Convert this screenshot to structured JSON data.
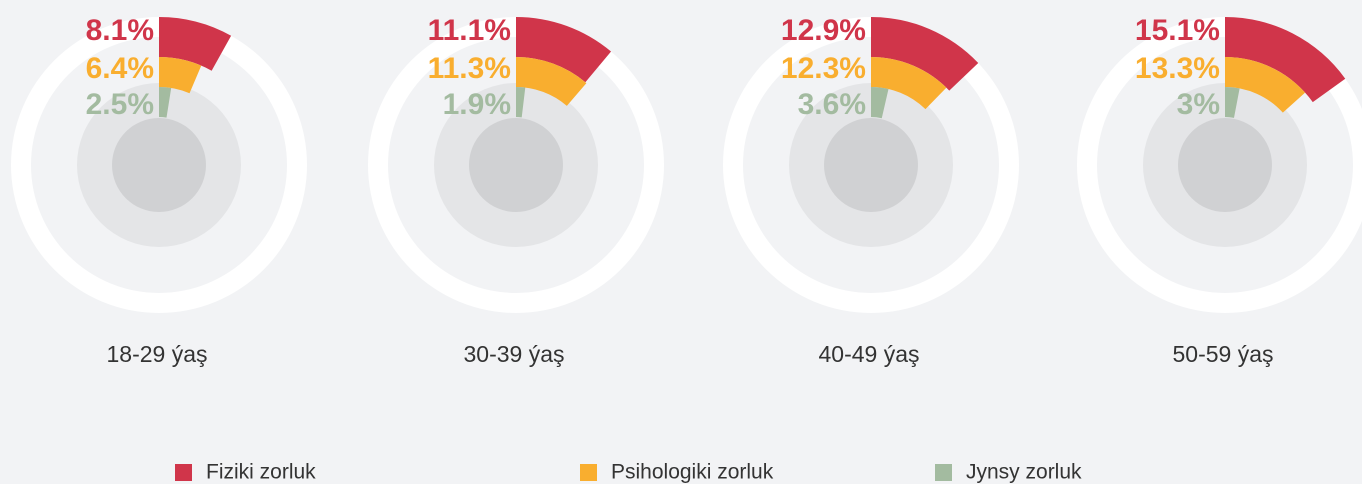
{
  "chart_data": {
    "type": "radial_bar",
    "categories": [
      "18-29 ýaş",
      "30-39 ýaş",
      "40-49 ýaş",
      "50-59 ýaş"
    ],
    "ylim": [
      0,
      100
    ],
    "series": [
      {
        "name": "Fiziki zorluk",
        "color": "#d0354a",
        "values": [
          8.1,
          11.1,
          12.9,
          15.1
        ],
        "value_labels": [
          "8.1%",
          "11.1%",
          "12.9%",
          "15.1%"
        ]
      },
      {
        "name": "Psihologiki zorluk",
        "color": "#f9ae2f",
        "values": [
          6.4,
          11.3,
          12.3,
          13.3
        ],
        "value_labels": [
          "6.4%",
          "11.3%",
          "12.3%",
          "13.3%"
        ]
      },
      {
        "name": "Jynsy zorluk",
        "color": "#a3bba0",
        "values": [
          2.5,
          1.9,
          3.6,
          3
        ],
        "value_labels": [
          "2.5%",
          "1.9%",
          "3.6%",
          "3%"
        ]
      }
    ]
  }
}
